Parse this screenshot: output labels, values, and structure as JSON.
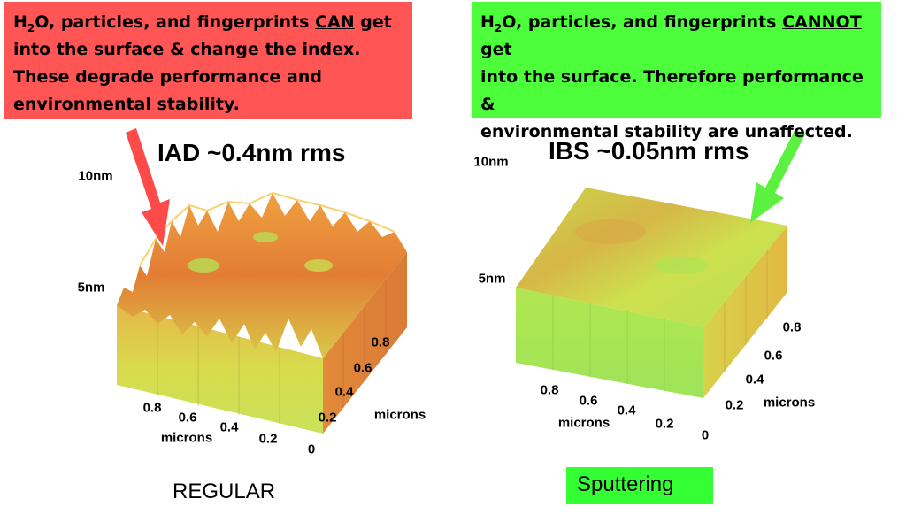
{
  "colors": {
    "red_callout": "#ff5555",
    "green_callout": "#4cff3a",
    "arrow_red": "#ff4a4a",
    "arrow_green": "#5cf040",
    "sputter_caption_bg": "#33ff33",
    "surface_orange": "#e8873a",
    "surface_yellow": "#d8e04a",
    "surface_green": "#a8e850"
  },
  "left": {
    "callout": {
      "h_letter": "H",
      "h_sub": "2",
      "l1_rest": "O, particles, and fingerprints",
      "keyword": "CAN",
      "l1_end": "get",
      "line2": "into the surface & change the index.",
      "line3": "These degrade performance and",
      "line4": "environmental stability."
    },
    "title": "IAD ~0.4nm rms",
    "z_ticks": [
      "10nm",
      "5nm"
    ],
    "front_ticks": [
      "0.8",
      "0.6",
      "0.4",
      "0.2"
    ],
    "front_label": "microns",
    "side_ticks": [
      "0.8",
      "0.6",
      "0.4",
      "0.2",
      "0"
    ],
    "side_label": "microns",
    "caption": "REGULAR"
  },
  "right": {
    "callout": {
      "h_letter": "H",
      "h_sub": "2",
      "l1_rest": "O, particles, and fingerprints",
      "keyword": "CANNOT",
      "l1_end": "get",
      "line2": "into the surface. Therefore performance &",
      "line3": "environmental stability are unaffected."
    },
    "title": "IBS ~0.05nm rms",
    "z_ticks": [
      "10nm",
      "5nm"
    ],
    "front_ticks": [
      "0.8",
      "0.6",
      "0.4",
      "0.2"
    ],
    "front_label": "microns",
    "side_ticks": [
      "0.8",
      "0.6",
      "0.4",
      "0.2",
      "0"
    ],
    "side_label": "microns",
    "caption": "Sputtering"
  }
}
